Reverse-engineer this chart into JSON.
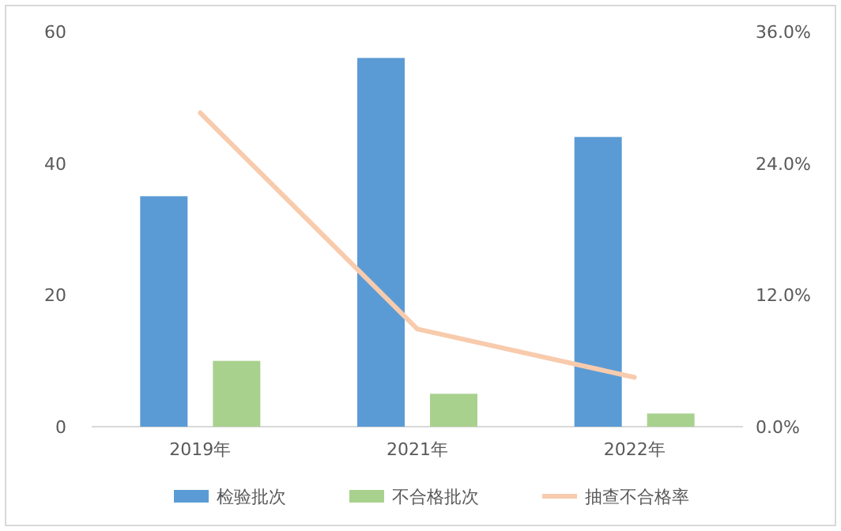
{
  "chart_data": {
    "type": "bar",
    "categories": [
      "2019年",
      "2021年",
      "2022年"
    ],
    "series": [
      {
        "name": "检验批次",
        "color": "#5b9bd5",
        "values": [
          35,
          56,
          44
        ]
      },
      {
        "name": "不合格批次",
        "color": "#a9d18e",
        "values": [
          10,
          5,
          2
        ]
      },
      {
        "name": "抽查不合格率",
        "color": "#f8cbad",
        "type": "line",
        "axis": "y2",
        "values": [
          28.6,
          8.9,
          4.5
        ]
      }
    ],
    "ylim": [
      0,
      60
    ],
    "yticks": [
      0,
      20,
      40,
      60
    ],
    "y2lim": [
      0,
      36
    ],
    "y2ticks": [
      {
        "value": 0,
        "label": "0.0%"
      },
      {
        "value": 12,
        "label": "12.0%"
      },
      {
        "value": 24,
        "label": "24.0%"
      },
      {
        "value": 36,
        "label": "36.0%"
      }
    ],
    "legend": "bottom",
    "grid": false
  }
}
